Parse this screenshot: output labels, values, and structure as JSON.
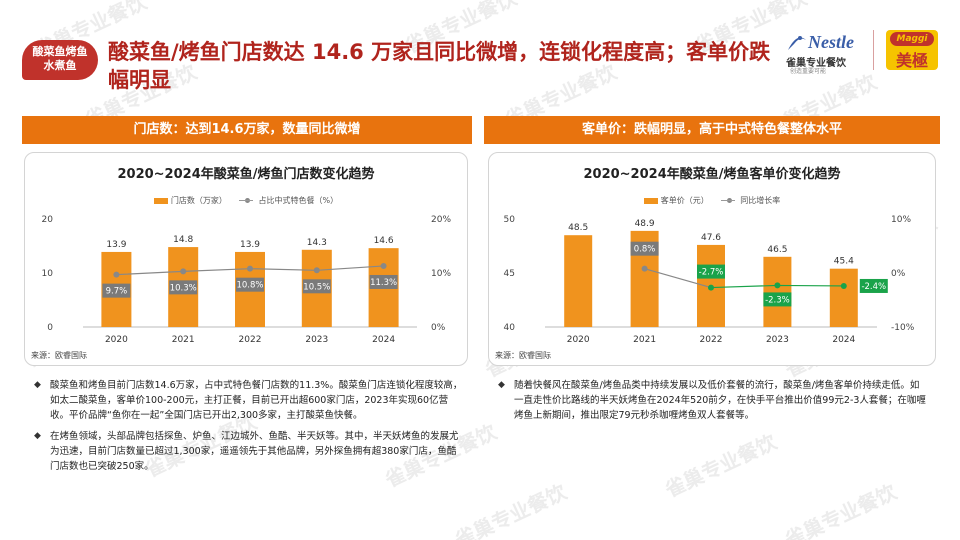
{
  "tag": {
    "line1": "酸菜鱼烤鱼",
    "line2": "水煮鱼"
  },
  "title": "酸菜鱼/烤鱼门店数达 14.6 万家且同比微增，连锁化程度高；客单价跌幅明显",
  "logos": {
    "nestle": "Nestle",
    "nestle_sub": "雀巢专业餐饮",
    "nestle_sub2": "创造重要可能",
    "maggi": "Maggi",
    "maggi_cn": "美極"
  },
  "watermark": "雀巢专业餐饮",
  "colors": {
    "accent": "#e8730e",
    "title": "#b0241d",
    "bar": "#f0931e",
    "green": "#1aa34a"
  },
  "left": {
    "header": "门店数：达到14.6万家，数量同比微增",
    "source": "来源：欧睿国际",
    "chart_data": {
      "type": "bar",
      "title": "2020~2024年酸菜鱼/烤鱼门店数变化趋势",
      "categories": [
        "2020",
        "2021",
        "2022",
        "2023",
        "2024"
      ],
      "series": [
        {
          "name": "门店数（万家）",
          "values": [
            13.9,
            14.8,
            13.9,
            14.3,
            14.6
          ],
          "labels": [
            "13.9",
            "14.8",
            "13.9",
            "14.3",
            "14.6"
          ]
        },
        {
          "name": "占比中式特色餐（%）",
          "values": [
            9.7,
            10.3,
            10.8,
            10.5,
            11.3
          ],
          "labels": [
            "9.7%",
            "10.3%",
            "10.8%",
            "10.5%",
            "11.3%"
          ]
        }
      ],
      "ylim": [
        0,
        20
      ],
      "yticks": [
        "0",
        "10",
        "20"
      ],
      "y2lim": [
        0,
        20
      ],
      "y2ticks": [
        "0%",
        "10%",
        "20%"
      ]
    },
    "bullets": [
      "酸菜鱼和烤鱼目前门店数14.6万家，占中式特色餐门店数的11.3%。酸菜鱼门店连锁化程度较高，如太二酸菜鱼，客单价100-200元，主打正餐，目前已开出超600家门店，2023年实现60亿营收。平价品牌“鱼你在一起”全国门店已开出2,300多家，主打酸菜鱼快餐。",
      "在烤鱼领域，头部品牌包括探鱼、炉鱼、江边城外、鱼酷、半天妖等。其中，半天妖烤鱼的发展尤为迅速，目前门店数量已超过1,300家，遥遥领先于其他品牌，另外探鱼拥有超380家门店，鱼酷门店数也已突破250家。"
    ]
  },
  "right": {
    "header": "客单价：跌幅明显，高于中式特色餐整体水平",
    "source": "来源：欧睿国际",
    "chart_data": {
      "type": "bar",
      "title": "2020~2024年酸菜鱼/烤鱼客单价变化趋势",
      "categories": [
        "2020",
        "2021",
        "2022",
        "2023",
        "2024"
      ],
      "series": [
        {
          "name": "客单价（元）",
          "values": [
            48.5,
            48.9,
            47.6,
            46.5,
            45.4
          ],
          "labels": [
            "48.5",
            "48.9",
            "47.6",
            "46.5",
            "45.4"
          ]
        },
        {
          "name": "同比增长率",
          "values": [
            null,
            0.8,
            -2.7,
            -2.3,
            -2.4
          ],
          "labels": [
            "",
            "0.8%",
            "-2.7%",
            "-2.3%",
            "-2.4%"
          ]
        }
      ],
      "ylim": [
        40,
        50
      ],
      "yticks": [
        "40",
        "45",
        "50"
      ],
      "y2lim": [
        -10,
        10
      ],
      "y2ticks": [
        "-10%",
        "0%",
        "10%"
      ]
    },
    "bullets": [
      "随着快餐风在酸菜鱼/烤鱼品类中持续发展以及低价套餐的流行，酸菜鱼/烤鱼客单价持续走低。如一直走性价比路线的半天妖烤鱼在2024年520前夕，在快手平台推出价值99元2-3人套餐；在咖喱烤鱼上新期间，推出限定79元秒杀咖喱烤鱼双人套餐等。"
    ]
  }
}
